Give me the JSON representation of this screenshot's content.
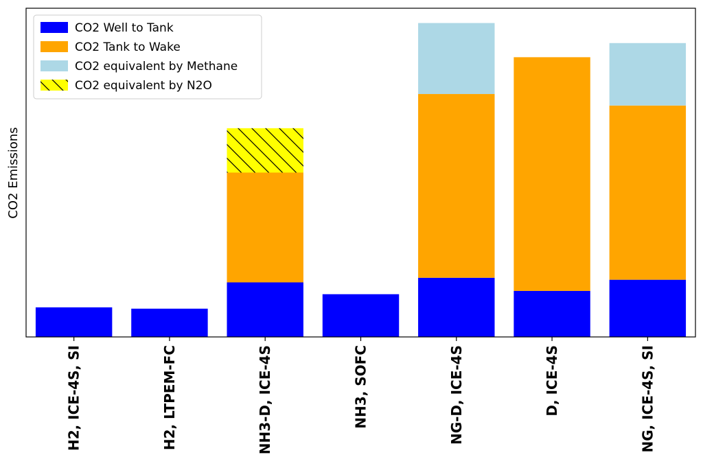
{
  "chart_data": {
    "type": "bar",
    "stacked": true,
    "title": "",
    "xlabel": "",
    "ylabel": "CO2 Emissions",
    "y_tick_labels_shown": false,
    "ylim": [
      0,
      100
    ],
    "grid": false,
    "legend_position": "top-left",
    "categories": [
      "H2, ICE-4S, SI",
      "H2, LTPEM-FC",
      "NH3-D, ICE-4S",
      "NH3, SOFC",
      "NG-D, ICE-4S",
      "D, ICE-4S",
      "NG, ICE-4S, SI"
    ],
    "series": [
      {
        "name": "CO2 Well to Tank",
        "color": "#0000ff",
        "hatch": "none",
        "values": [
          9.0,
          8.6,
          16.6,
          13.0,
          18.0,
          14.0,
          17.4
        ]
      },
      {
        "name": "CO2 Tank to Wake",
        "color": "#ffa500",
        "hatch": "none",
        "values": [
          0,
          0,
          33.4,
          0,
          55.9,
          71.1,
          53.0
        ]
      },
      {
        "name": "CO2 equivalent by Methane",
        "color": "#add8e6",
        "hatch": "none",
        "values": [
          0,
          0,
          0,
          0,
          21.6,
          0,
          19.0
        ]
      },
      {
        "name": "CO2 equivalent by N2O",
        "color": "#ffff00",
        "hatch": "diagonal",
        "values": [
          0,
          0,
          13.5,
          0,
          0,
          0,
          0
        ]
      }
    ]
  }
}
